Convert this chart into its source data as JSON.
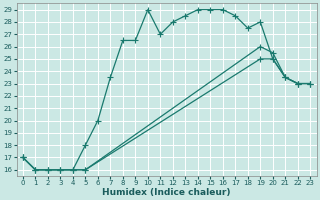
{
  "xlabel": "Humidex (Indice chaleur)",
  "background_color": "#cbe8e4",
  "grid_color": "#ffffff",
  "line_color": "#1a7a6e",
  "xlim": [
    -0.5,
    23.5
  ],
  "ylim": [
    15.5,
    29.5
  ],
  "yticks": [
    16,
    17,
    18,
    19,
    20,
    21,
    22,
    23,
    24,
    25,
    26,
    27,
    28,
    29
  ],
  "xticks": [
    0,
    1,
    2,
    3,
    4,
    5,
    6,
    7,
    8,
    9,
    10,
    11,
    12,
    13,
    14,
    15,
    16,
    17,
    18,
    19,
    20,
    21,
    22,
    23
  ],
  "line1_x": [
    0,
    1,
    2,
    3,
    4,
    5,
    6,
    7,
    8,
    9,
    10,
    11,
    12,
    13,
    14,
    15,
    16,
    17,
    18,
    19,
    20,
    21,
    22,
    23
  ],
  "line1_y": [
    17,
    16,
    16,
    16,
    16,
    18,
    20,
    23.5,
    26.5,
    26.5,
    29,
    27,
    28,
    28.5,
    29,
    29,
    29,
    28.5,
    27.5,
    28,
    25,
    23.5,
    23,
    23
  ],
  "line2_x": [
    0,
    1,
    2,
    3,
    4,
    5,
    19,
    20,
    21,
    22,
    23
  ],
  "line2_y": [
    17,
    16,
    16,
    16,
    16,
    16,
    26,
    25.5,
    23.5,
    23,
    23
  ],
  "line3_x": [
    0,
    1,
    2,
    3,
    4,
    5,
    19,
    20,
    21,
    22,
    23
  ],
  "line3_y": [
    17,
    16,
    16,
    16,
    16,
    16,
    25,
    25,
    23.5,
    23,
    23
  ],
  "line1_has_markers": true,
  "line2_has_markers": true,
  "line3_has_markers": true
}
